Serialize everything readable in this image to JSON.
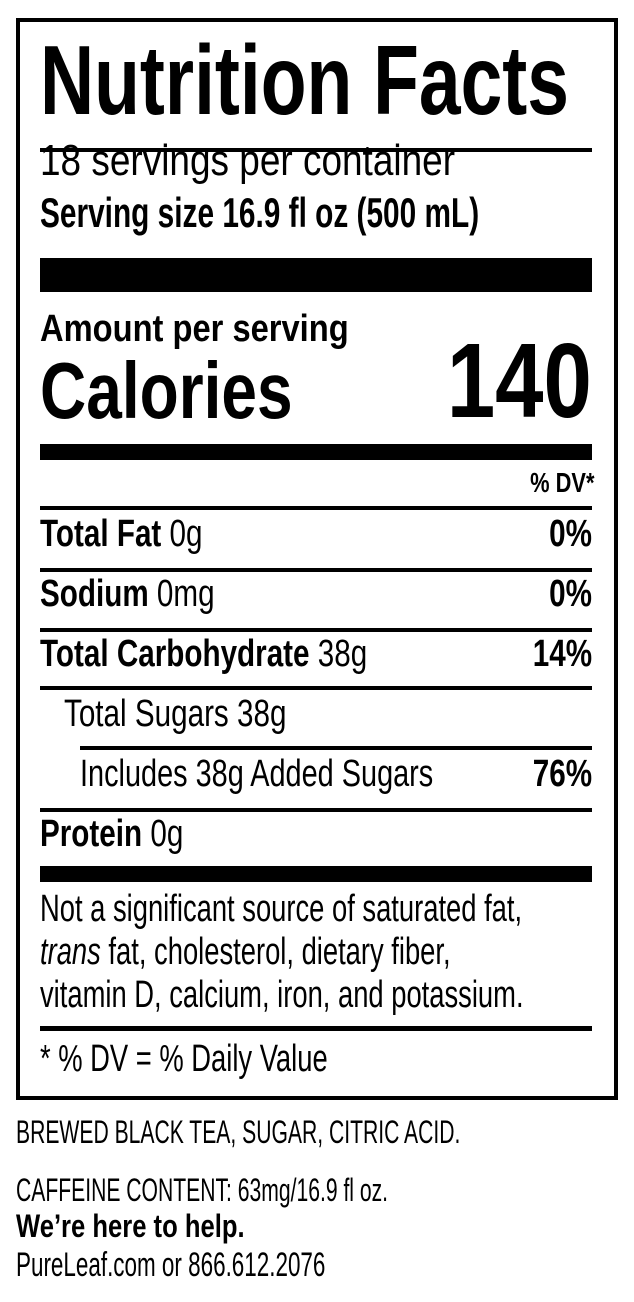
{
  "label": {
    "title": "Nutrition Facts",
    "servings_per_container": "18 servings per container",
    "serving_size": "Serving size 16.9 fl oz (500 mL)",
    "amount_per_serving": "Amount per serving",
    "calories_label": "Calories",
    "calories_value": "140",
    "dv_header": "% DV*",
    "nutrients": [
      {
        "name": "Total Fat",
        "amount": "0g",
        "dv": "0%"
      },
      {
        "name": "Sodium",
        "amount": "0mg",
        "dv": "0%"
      },
      {
        "name": "Total Carbohydrate",
        "amount": "38g",
        "dv": "14%"
      },
      {
        "name": "Total Sugars 38g",
        "amount": "",
        "dv": ""
      },
      {
        "name": "Includes 38g Added Sugars",
        "amount": "",
        "dv": "76%"
      },
      {
        "name": "Protein",
        "amount": "0g",
        "dv": ""
      }
    ],
    "note_italic": "trans",
    "note_line1": "Not a significant source of saturated fat,",
    "note_line2": " fat, cholesterol, dietary fiber,",
    "note_line3": "vitamin D, calcium, iron, and potassium.",
    "footnote": "* % DV = % Daily Value"
  },
  "ingredients": "BREWED BLACK TEA, SUGAR, CITRIC ACID.",
  "caffeine": "CAFFEINE CONTENT: 63mg/16.9 fl oz.",
  "help_heading": "We’re here to help.",
  "contact": "PureLeaf.com or 866.612.2076"
}
